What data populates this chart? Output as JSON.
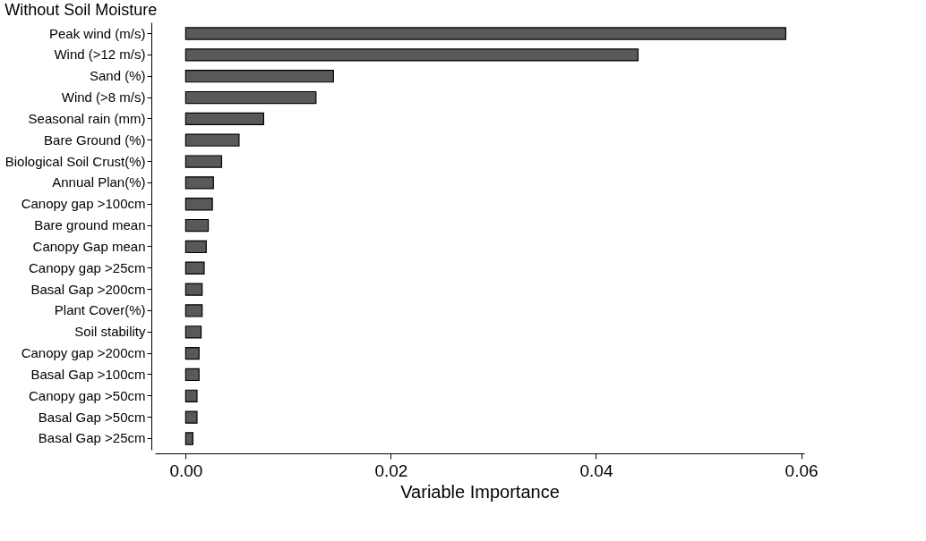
{
  "chart_data": {
    "type": "bar",
    "orientation": "horizontal",
    "title": "Without Soil Moisture",
    "xlabel": "Variable Importance",
    "categories": [
      "Peak wind (m/s)",
      "Wind (>12 m/s)",
      "Sand (%)",
      "Wind (>8 m/s)",
      "Seasonal rain (mm)",
      "Bare Ground (%)",
      "Biological Soil Crust(%)",
      "Annual Plan(%)",
      "Canopy gap >100cm",
      "Bare ground mean",
      "Canopy Gap mean",
      "Canopy gap >25cm",
      "Basal Gap >200cm",
      "Plant Cover(%)",
      "Soil stability",
      "Canopy gap >200cm",
      "Basal Gap >100cm",
      "Canopy gap >50cm",
      "Basal Gap >50cm",
      "Basal Gap >25cm"
    ],
    "values": [
      0.0585,
      0.0441,
      0.0144,
      0.0127,
      0.0076,
      0.0052,
      0.0035,
      0.0027,
      0.0026,
      0.0022,
      0.002,
      0.0018,
      0.0016,
      0.0016,
      0.0015,
      0.0013,
      0.0013,
      0.0011,
      0.0011,
      0.0007
    ],
    "color": "#595959",
    "xlim": [
      -0.003,
      0.0603
    ],
    "xticks": [
      {
        "value": 0,
        "label": "0.00"
      },
      {
        "value": 0.02,
        "label": "0.02"
      },
      {
        "value": 0.04,
        "label": "0.04"
      },
      {
        "value": 0.06,
        "label": "0.06"
      }
    ],
    "grid": false
  }
}
